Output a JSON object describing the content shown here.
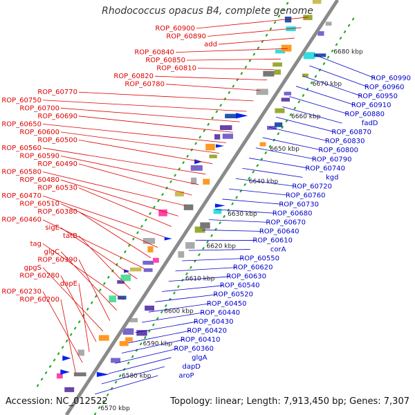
{
  "title": "Rhodococcus opacus B4, complete genome",
  "accession": "Accession: NC_012522",
  "summary": "Topology: linear; Length: 7,913,450 bp; Genes: 7,307",
  "colors": {
    "left_label": "#dd0000",
    "right_label": "#0000cc",
    "backbone": "#8a8a8a",
    "tick": "#22aa22"
  },
  "ticks": [
    {
      "label": "6570 kbp"
    },
    {
      "label": "6580 kbp"
    },
    {
      "label": "6590 kbp"
    },
    {
      "label": "6600 kbp"
    },
    {
      "label": "6610 kbp"
    },
    {
      "label": "6620 kbp"
    },
    {
      "label": "6630 kbp"
    },
    {
      "label": "6640 kbp"
    },
    {
      "label": "6650 kbp"
    },
    {
      "label": "6660 kbp"
    },
    {
      "label": "6670 kbp"
    },
    {
      "label": "6680 kbp"
    }
  ],
  "left_genes": [
    "ROP_60900",
    "ROP_60890",
    "add",
    "ROP_60840",
    "ROP_60850",
    "ROP_60810",
    "ROP_60820",
    "ROP_60780",
    "ROP_60770",
    "ROP_60750",
    "ROP_60700",
    "ROP_60690",
    "ROP_60650",
    "ROP_60600",
    "ROP_60500",
    "ROP_60560",
    "ROP_60590",
    "ROP_60490",
    "ROP_60580",
    "ROP_60480",
    "ROP_60530",
    "ROP_60470",
    "ROP_60510",
    "ROP_60380",
    "ROP_60460",
    "sigE",
    "tatB",
    "tag",
    "glgC",
    "ROP_60390",
    "gpgS",
    "ROP_60280",
    "dapE",
    "ROP_60230",
    "ROP_60200"
  ],
  "right_genes": [
    "ROP_60990",
    "ROP_60960",
    "ROP_60950",
    "ROP_60910",
    "ROP_60880",
    "fadD",
    "ROP_60870",
    "ROP_60830",
    "ROP_60800",
    "ROP_60790",
    "ROP_60740",
    "kgd",
    "ROP_60720",
    "ROP_60760",
    "ROP_60730",
    "ROP_60680",
    "ROP_60670",
    "ROP_60640",
    "ROP_60610",
    "corA",
    "ROP_60550",
    "ROP_60620",
    "ROP_60630",
    "ROP_60540",
    "ROP_60520",
    "ROP_60450",
    "ROP_60440",
    "ROP_60430",
    "ROP_60420",
    "ROP_60410",
    "ROP_60360",
    "glgA",
    "dapD",
    "aroP"
  ]
}
